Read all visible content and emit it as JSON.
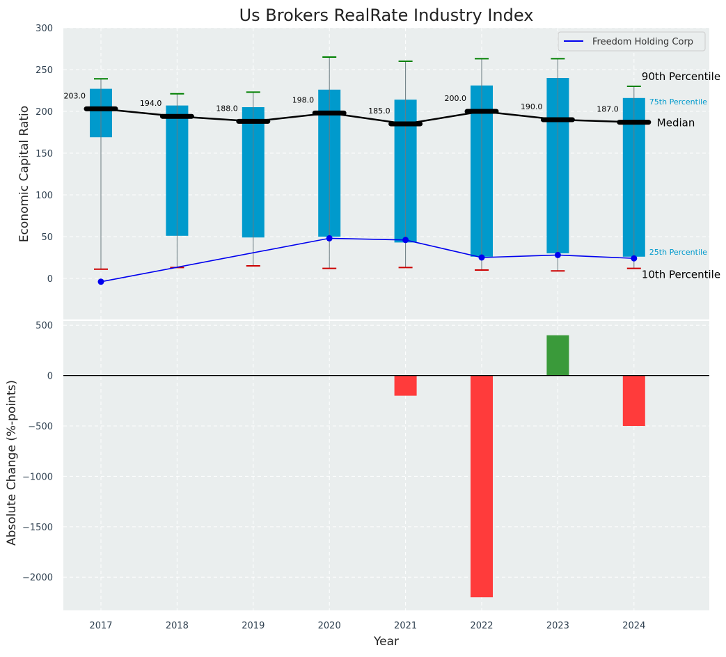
{
  "chart_data": {
    "type": "box_with_line_and_bar",
    "title": "Us Brokers RealRate Industry Index",
    "xlabel": "Year",
    "categories": [
      "2017",
      "2018",
      "2019",
      "2020",
      "2021",
      "2022",
      "2023",
      "2024"
    ],
    "top_panel": {
      "ylabel": "Economic Capital Ratio",
      "ylim": [
        -50,
        300
      ],
      "yticks": [
        0,
        50,
        100,
        150,
        200,
        250,
        300
      ],
      "grid": true,
      "legend_position": "top-right",
      "percentiles": {
        "p10": [
          11,
          13,
          15,
          12,
          13,
          10,
          9,
          12
        ],
        "p25": [
          169,
          51,
          49,
          50,
          43,
          26,
          30,
          26
        ],
        "median": [
          203,
          194,
          188,
          198,
          185,
          200,
          190,
          187
        ],
        "p75": [
          227,
          207,
          205,
          226,
          214,
          231,
          240,
          216
        ],
        "p90": [
          239,
          221,
          223,
          265,
          260,
          263,
          263,
          230
        ]
      },
      "median_labels": [
        "203.0",
        "194.0",
        "188.0",
        "198.0",
        "185.0",
        "200.0",
        "190.0",
        "187.0"
      ],
      "series": [
        {
          "name": "Freedom Holding Corp",
          "values": [
            -4,
            null,
            null,
            48,
            46,
            25,
            28,
            24
          ]
        }
      ],
      "annotations": {
        "p90": "90th Percentile",
        "p75": "75th Percentile",
        "median": "Median",
        "p25": "25th Percentile",
        "p10": "10th Percentile"
      }
    },
    "bottom_panel": {
      "type": "bar",
      "ylabel": "Absolute Change (%-points)",
      "ylim": [
        -2330,
        550
      ],
      "yticks": [
        -2000,
        -1500,
        -1000,
        -500,
        0,
        500
      ],
      "ytick_labels": [
        "−2000",
        "−1500",
        "−1000",
        "−500",
        "0",
        "500"
      ],
      "grid": true,
      "values": [
        null,
        null,
        null,
        null,
        -200,
        -2200,
        400,
        -500
      ]
    },
    "colors": {
      "background": "#EAEEEE",
      "box": "#009ACC",
      "median_line": "#000000",
      "series_line": "#0000EE",
      "p90_cap": "#008000",
      "p10_cap": "#CC0000",
      "positive_bar": "#3A9A3A",
      "negative_bar": "#FF3B3B",
      "pct_label": "#009ACC"
    }
  }
}
